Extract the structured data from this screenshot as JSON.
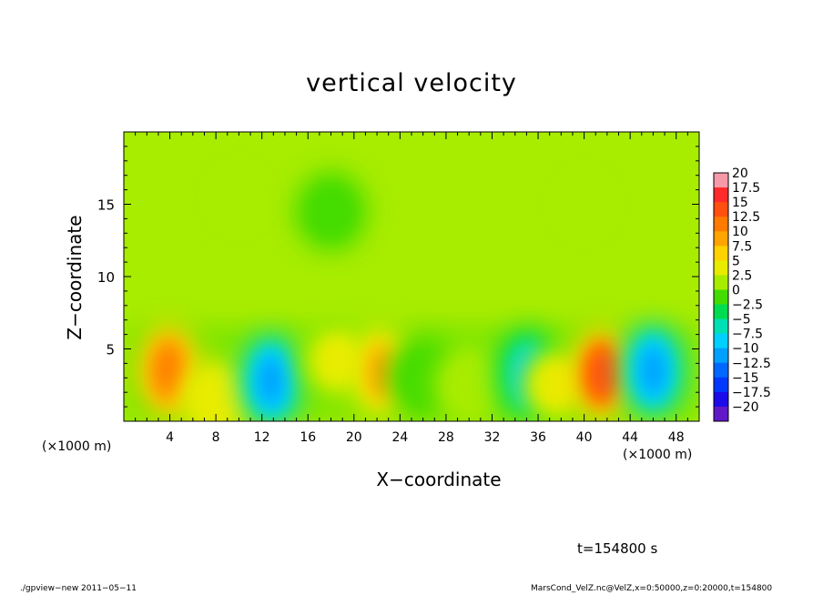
{
  "chart_data": {
    "type": "heatmap",
    "title": "vertical velocity",
    "xlabel": "X−coordinate",
    "ylabel": "Z−coordinate",
    "xunit": "(×1000 m)",
    "xlim": [
      0,
      50
    ],
    "ylim": [
      0,
      20
    ],
    "x_ticks": [
      "4",
      "8",
      "12",
      "16",
      "20",
      "24",
      "28",
      "32",
      "36",
      "40",
      "44",
      "48"
    ],
    "y_ticks": [
      "5",
      "10",
      "15"
    ],
    "colorbar": {
      "levels": [
        "20",
        "17.5",
        "15",
        "12.5",
        "10",
        "7.5",
        "5",
        "2.5",
        "0",
        "−2.5",
        "−5",
        "−7.5",
        "−10",
        "−12.5",
        "−15",
        "−17.5",
        "−20"
      ],
      "colors": [
        "#f59aa6",
        "#ff2a2a",
        "#ff5010",
        "#ff7a00",
        "#ffa400",
        "#ffd200",
        "#e8ec00",
        "#a8ec00",
        "#44dc00",
        "#00dc50",
        "#00e0b4",
        "#00d0ff",
        "#00a0ff",
        "#0068ff",
        "#0038ff",
        "#1c0ae8",
        "#6018c8"
      ]
    },
    "features": [
      {
        "x": 3.9,
        "z": 3.5,
        "value": 12
      },
      {
        "x": 8.0,
        "z": 1.5,
        "value": 6
      },
      {
        "x": 12.8,
        "z": 2.8,
        "value": -12
      },
      {
        "x": 18.5,
        "z": 4.2,
        "value": 4
      },
      {
        "x": 22.4,
        "z": 3.4,
        "value": 9
      },
      {
        "x": 26.0,
        "z": 3.0,
        "value": -3
      },
      {
        "x": 30.0,
        "z": 2.5,
        "value": 3
      },
      {
        "x": 35.1,
        "z": 3.2,
        "value": -9
      },
      {
        "x": 37.5,
        "z": 2.5,
        "value": 4
      },
      {
        "x": 41.5,
        "z": 3.3,
        "value": 14
      },
      {
        "x": 46.0,
        "z": 3.5,
        "value": -12
      },
      {
        "x": 10.0,
        "z": 15.5,
        "value": 0.5
      },
      {
        "x": 18.0,
        "z": 14.5,
        "value": -2.5
      },
      {
        "x": 40.0,
        "z": 15.0,
        "value": 0.5
      }
    ],
    "grid": false,
    "legend": "right"
  },
  "time_label": "t=154800 s",
  "footer": {
    "left": "./gpview−new  2011−05−11",
    "right": "MarsCond_VelZ.nc@VelZ,x=0:50000,z=0:20000,t=154800"
  }
}
